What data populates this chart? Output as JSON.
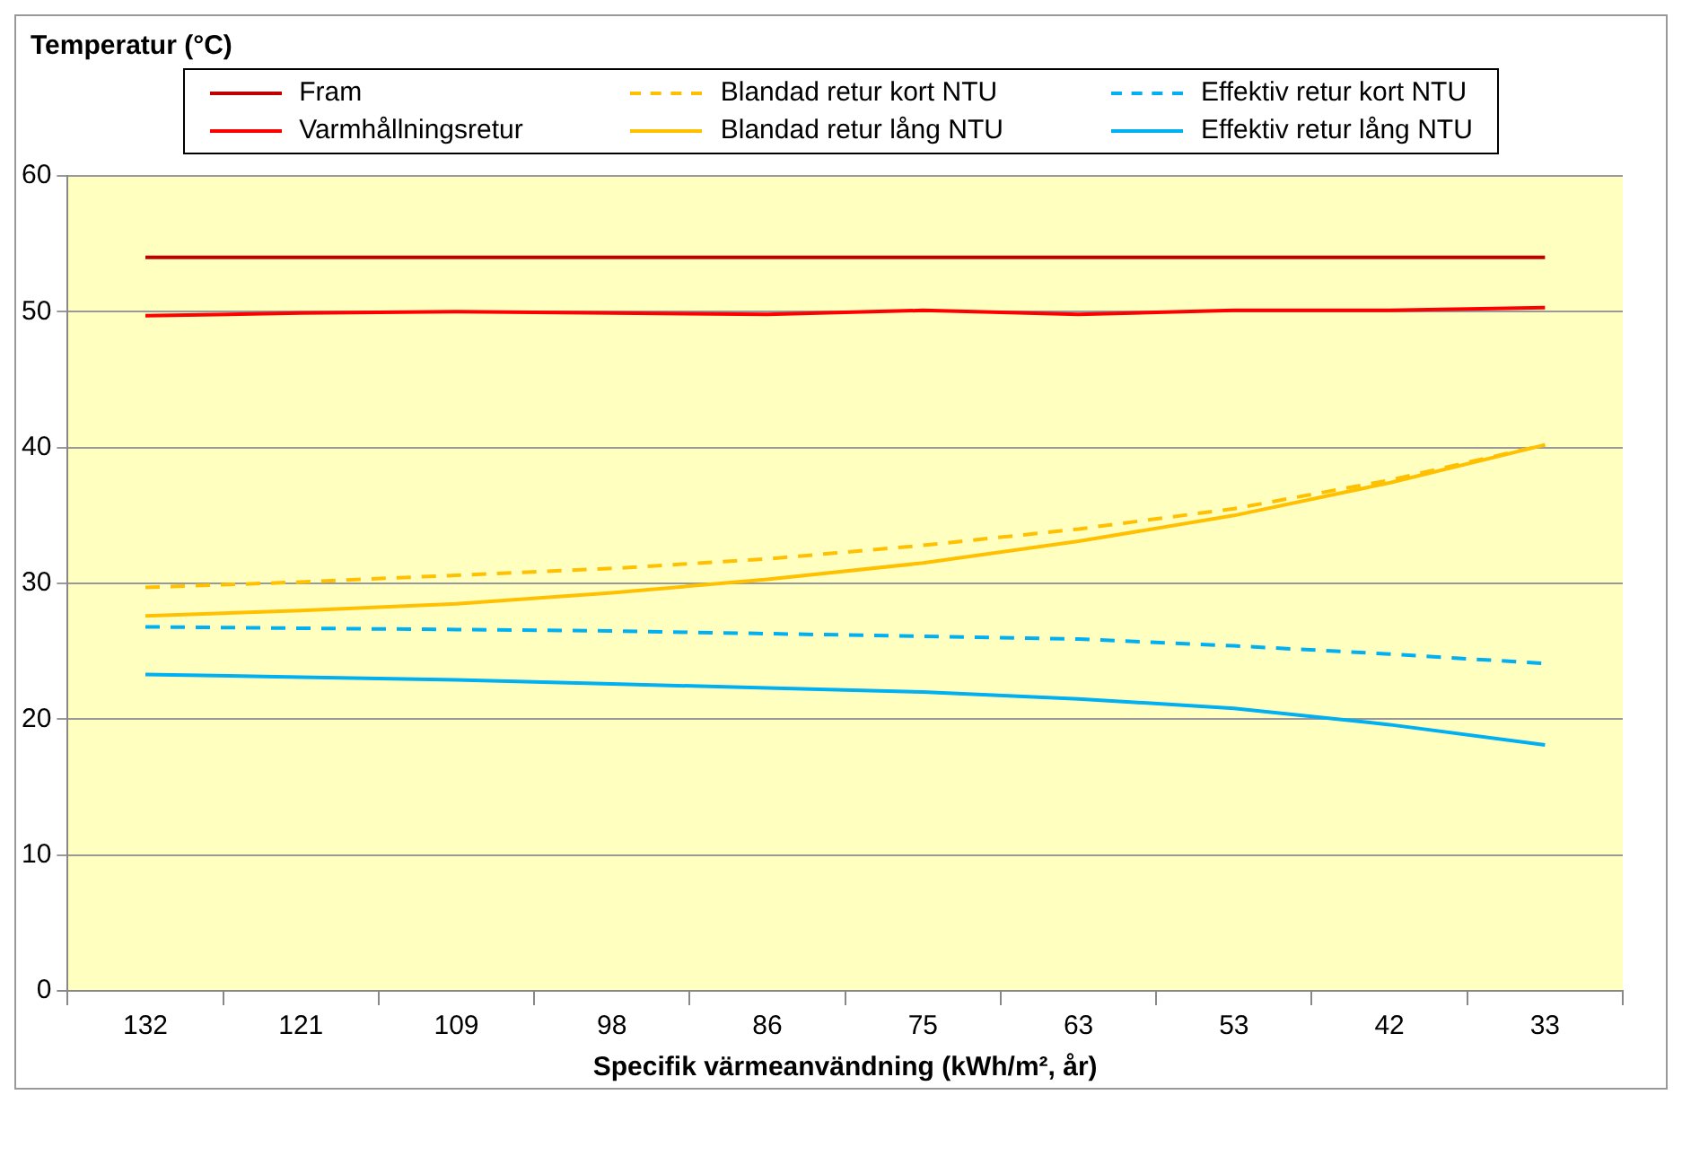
{
  "chart_data": {
    "type": "line",
    "title": "Temperatur (°C)",
    "xlabel": "Specifik värmeanvändning (kWh/m², år)",
    "categories": [
      "132",
      "121",
      "109",
      "98",
      "86",
      "75",
      "63",
      "53",
      "42",
      "33"
    ],
    "ylim": [
      0,
      60
    ],
    "yticks": [
      0,
      10,
      20,
      30,
      40,
      50,
      60
    ],
    "grid": "y",
    "legend": "top",
    "marker": "none",
    "series": [
      {
        "name": "Fram",
        "color": "#c00000",
        "line_style": "solid",
        "values": [
          54,
          54,
          54,
          54,
          54,
          54,
          54,
          54,
          54,
          54
        ]
      },
      {
        "name": "Varmhållningsretur",
        "color": "#ff0000",
        "line_style": "solid",
        "values": [
          49.7,
          49.9,
          50.0,
          49.9,
          49.8,
          50.1,
          49.8,
          50.1,
          50.1,
          50.3
        ]
      },
      {
        "name": "Blandad retur kort NTU",
        "color": "#ffc000",
        "line_style": "dashed",
        "values": [
          29.7,
          30.1,
          30.6,
          31.1,
          31.8,
          32.8,
          34.0,
          35.5,
          37.6,
          40.2
        ]
      },
      {
        "name": "Blandad retur lång NTU",
        "color": "#ffc000",
        "line_style": "solid",
        "values": [
          27.6,
          28.0,
          28.5,
          29.3,
          30.3,
          31.5,
          33.1,
          35.0,
          37.4,
          40.2
        ]
      },
      {
        "name": "Effektiv retur kort NTU",
        "color": "#00b0f0",
        "line_style": "dashed",
        "values": [
          26.8,
          26.7,
          26.6,
          26.5,
          26.3,
          26.1,
          25.9,
          25.4,
          24.8,
          24.1
        ]
      },
      {
        "name": "Effektiv retur lång NTU",
        "color": "#00b0f0",
        "line_style": "solid",
        "values": [
          23.3,
          23.1,
          22.9,
          22.6,
          22.3,
          22.0,
          21.5,
          20.8,
          19.6,
          18.1
        ]
      }
    ]
  }
}
